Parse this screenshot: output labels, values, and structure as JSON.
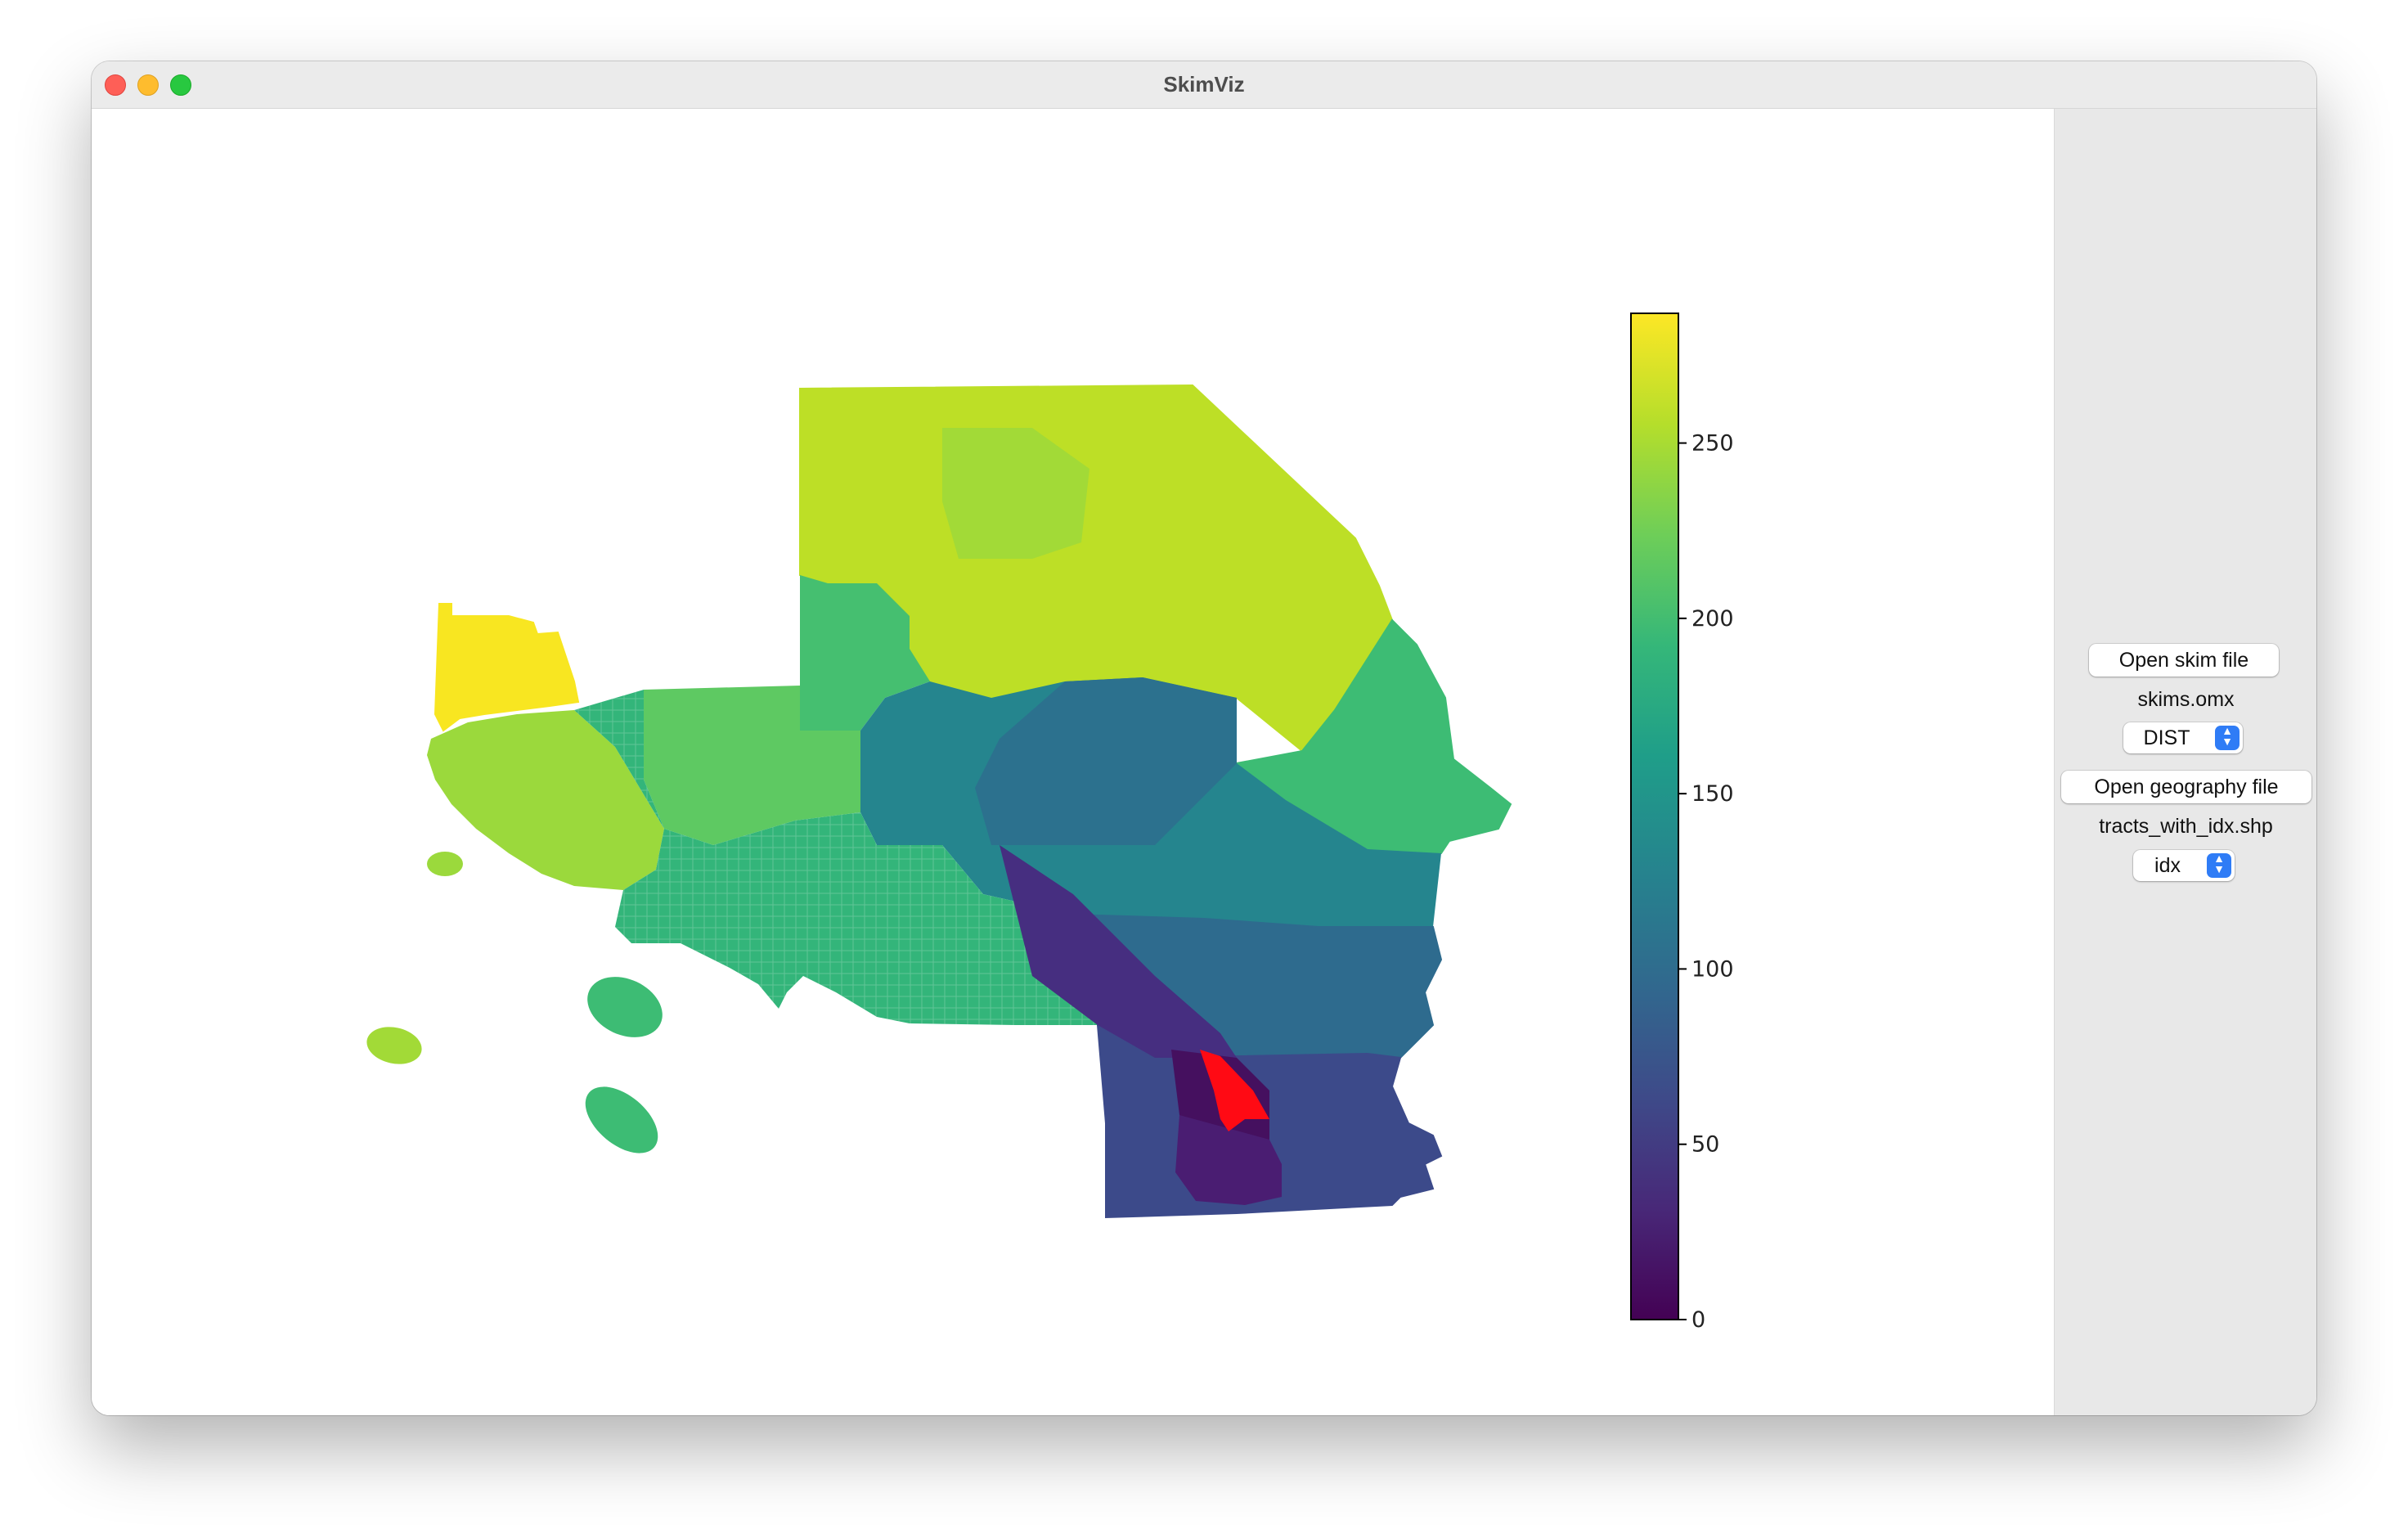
{
  "window": {
    "title": "SkimViz"
  },
  "sidebar": {
    "open_skim_button": "Open skim file",
    "skim_file": "skims.omx",
    "matrix_select": "DIST",
    "open_geography_button": "Open geography file",
    "geography_file": "tracts_with_idx.shp",
    "field_select": "idx"
  },
  "chart_data": {
    "type": "heatmap",
    "title": "",
    "colormap": "viridis",
    "colorbar": {
      "ticks": [
        0,
        50,
        100,
        150,
        200,
        250
      ],
      "min": 0,
      "max": 287
    },
    "highlight": {
      "description": "selected origin zone",
      "color": "#ff0a14"
    }
  },
  "colors": {
    "highlight": "#ff0a14",
    "viridis": [
      "#440154",
      "#482878",
      "#3e4a89",
      "#31688e",
      "#26828e",
      "#1f9e89",
      "#35b779",
      "#6ece58",
      "#b5de2b",
      "#fde725"
    ]
  }
}
